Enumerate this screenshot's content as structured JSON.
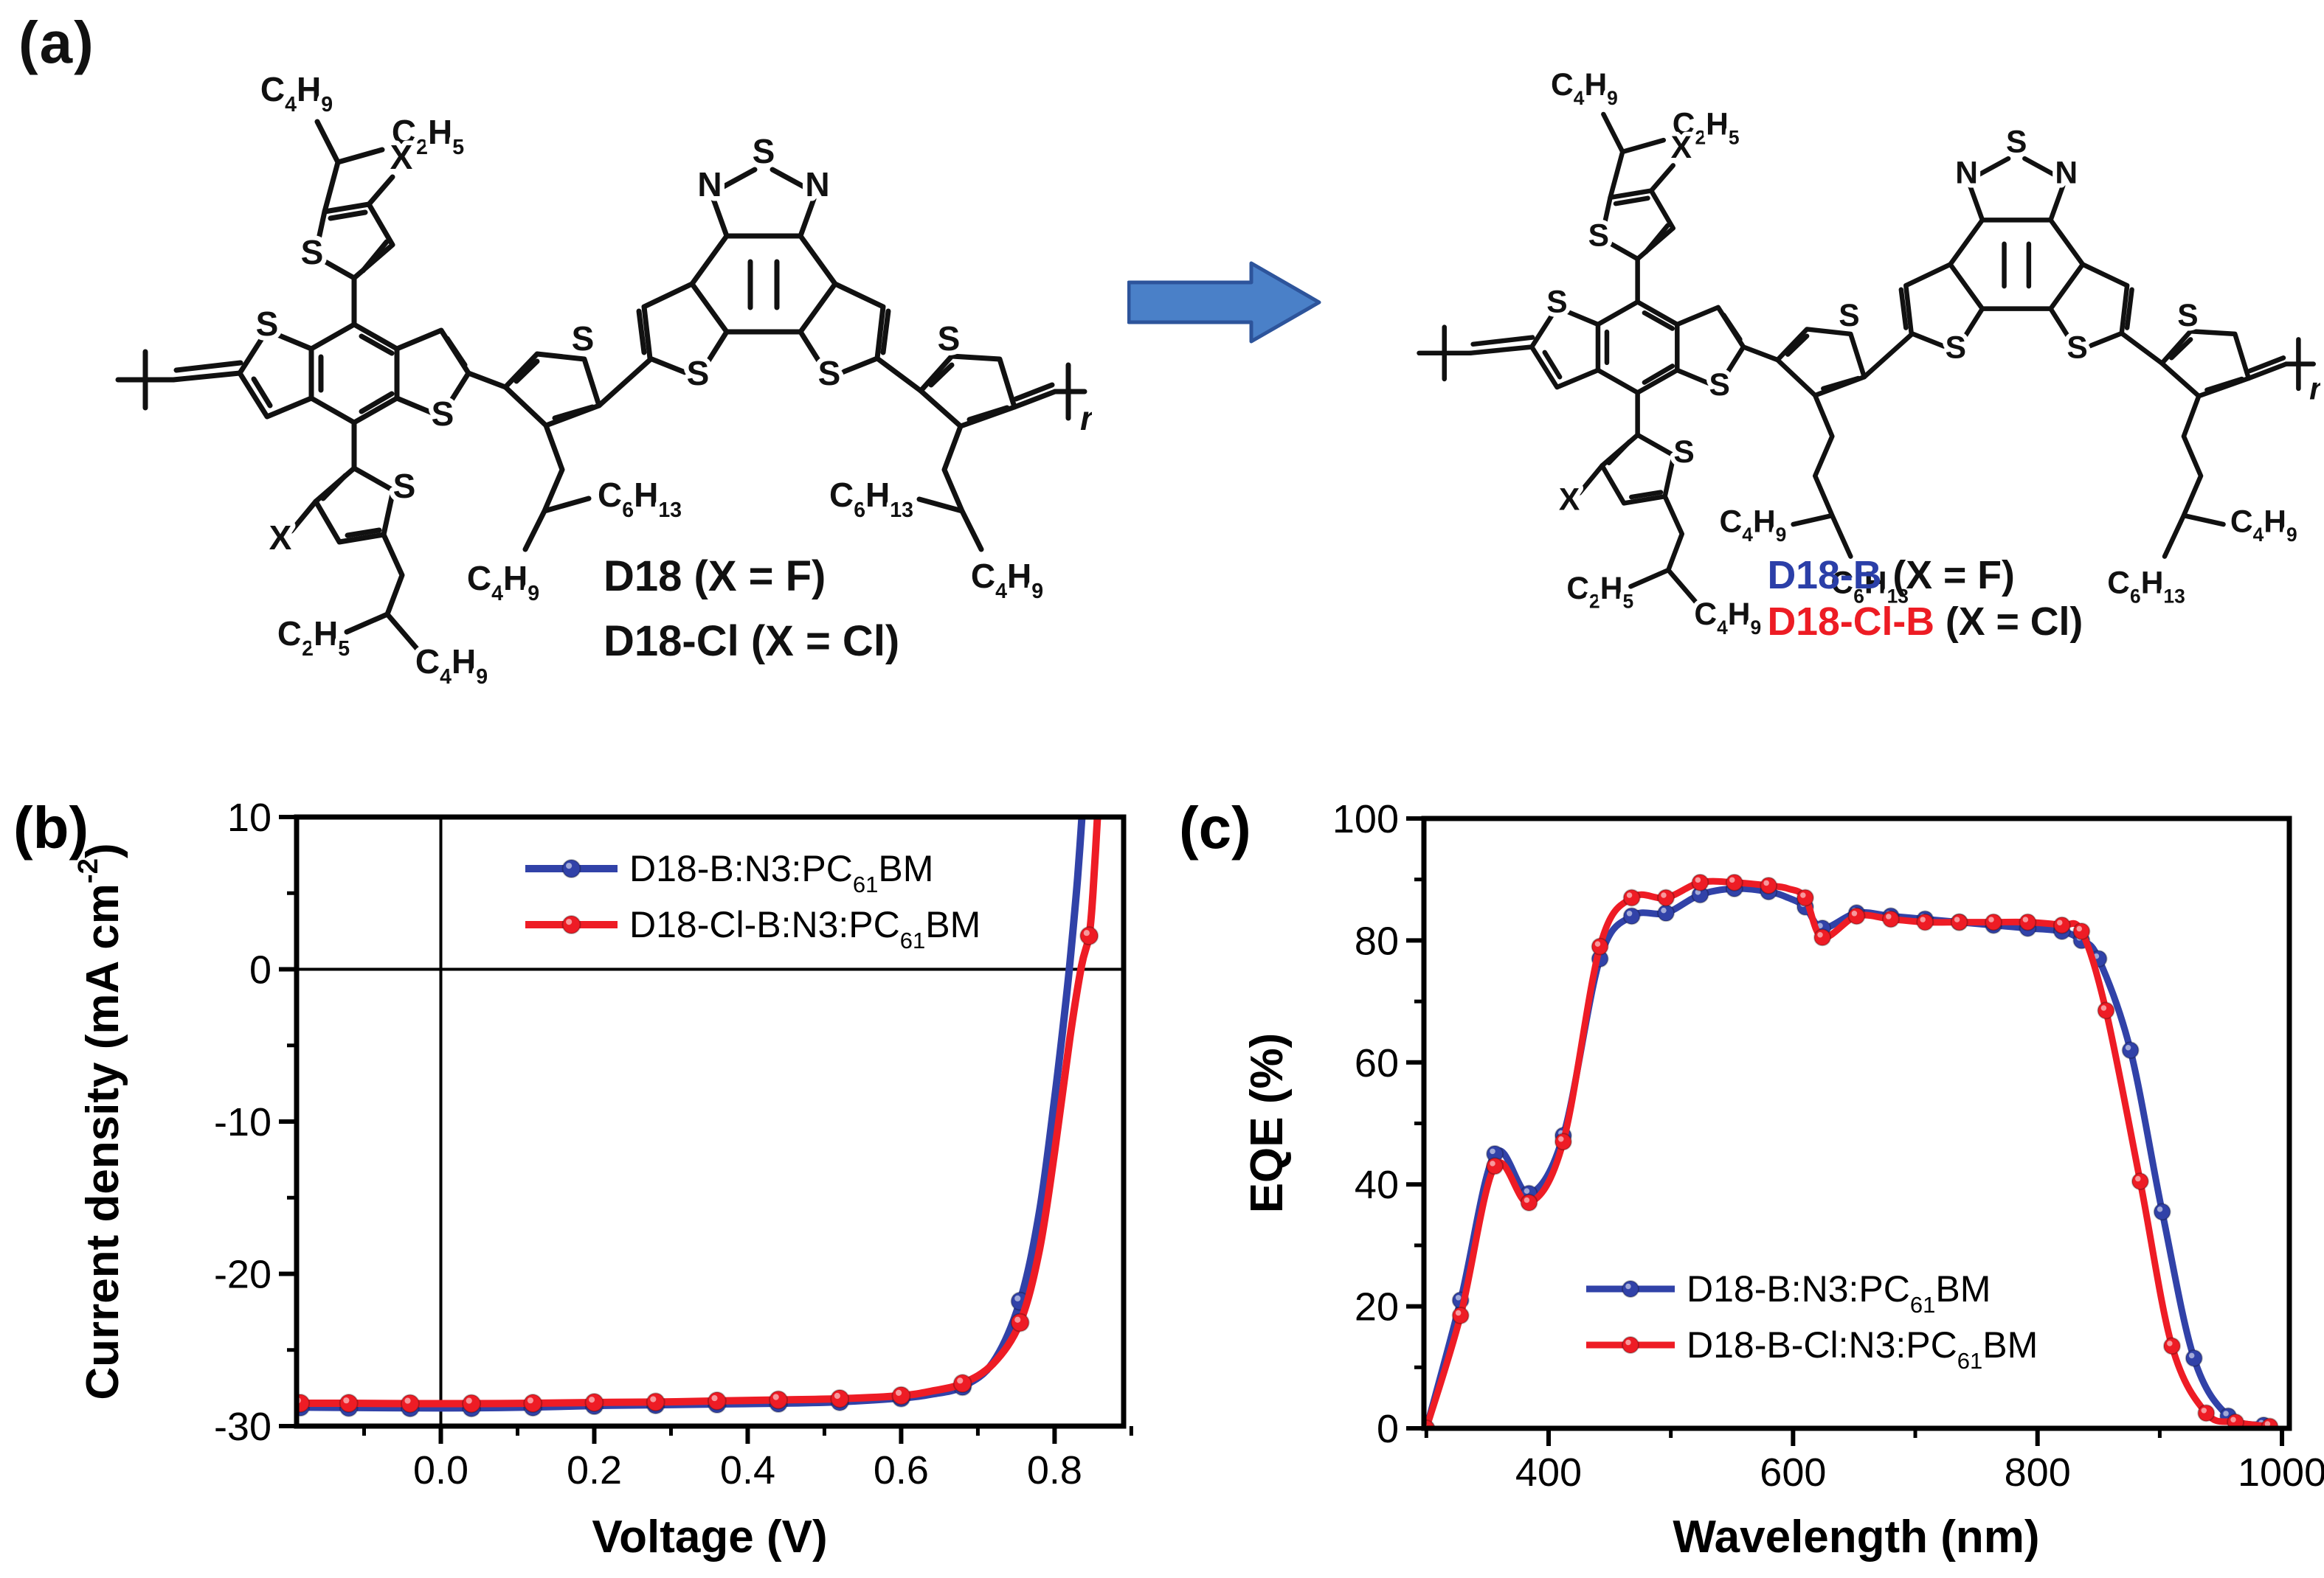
{
  "panel_a": {
    "label": "(a)",
    "arrow": {
      "fill": "#4a80c8",
      "stroke": "#2d549b"
    },
    "formulas": {
      "c4h9": "C_{4}H_{9}",
      "c2h5": "C_{2}H_{5}",
      "c6h13": "C_{6}H_{13}",
      "s": "S",
      "n": "N",
      "x": "X",
      "repeat": "n"
    },
    "left": {
      "captions": [
        {
          "name": "D18",
          "color": "#111111",
          "cond": " (X = F)"
        },
        {
          "name": "D18-Cl",
          "color": "#111111",
          "cond": " (X = Cl)"
        }
      ]
    },
    "right": {
      "captions": [
        {
          "name": "D18-B",
          "color": "#2b3fa8",
          "cond": " (X = F)"
        },
        {
          "name": "D18-Cl-B",
          "color": "#ed1c24",
          "cond": " (X = Cl)"
        }
      ]
    }
  },
  "chart_data": [
    {
      "panel_label": "(b)",
      "type": "line",
      "title": "",
      "xlabel": "Voltage (V)",
      "ylabel": "Current density (mA cm^{-2})",
      "xlim": [
        -0.188,
        0.89
      ],
      "ylim": [
        -30,
        10
      ],
      "x_major_ticks": [
        0.0,
        0.2,
        0.4,
        0.6,
        0.8
      ],
      "x_tick_labels": [
        "0.0",
        "0.2",
        "0.4",
        "0.6",
        "0.8"
      ],
      "x_minor_ticks": [
        -0.1,
        0.1,
        0.3,
        0.5,
        0.7,
        0.9
      ],
      "y_major_ticks": [
        10,
        0,
        -10,
        -20,
        -30
      ],
      "y_tick_labels": [
        "10",
        "0",
        "-10",
        "-20",
        "-30"
      ],
      "y_minor_ticks": [
        5,
        -5,
        -15,
        -25
      ],
      "grid": false,
      "zero_lines": true,
      "legend_position": "top-inside",
      "series": [
        {
          "name": "D18-B:N3:PC_{61}BM",
          "color": "#3142a8",
          "line": [
            [
              -0.188,
              -28.75
            ],
            [
              -0.12,
              -28.78
            ],
            [
              -0.04,
              -28.8
            ],
            [
              0.04,
              -28.8
            ],
            [
              0.12,
              -28.75
            ],
            [
              0.2,
              -28.65
            ],
            [
              0.28,
              -28.6
            ],
            [
              0.36,
              -28.55
            ],
            [
              0.44,
              -28.5
            ],
            [
              0.52,
              -28.4
            ],
            [
              0.6,
              -28.15
            ],
            [
              0.64,
              -27.9
            ],
            [
              0.68,
              -27.4
            ],
            [
              0.72,
              -25.8
            ],
            [
              0.755,
              -21.8
            ],
            [
              0.78,
              -16.0
            ],
            [
              0.8,
              -8.5
            ],
            [
              0.815,
              -2.0
            ],
            [
              0.822,
              1.5
            ],
            [
              0.83,
              6.0
            ],
            [
              0.837,
              11.0
            ]
          ],
          "markers": [
            [
              -0.183,
              -28.75
            ],
            [
              -0.12,
              -28.78
            ],
            [
              -0.04,
              -28.8
            ],
            [
              0.04,
              -28.8
            ],
            [
              0.12,
              -28.75
            ],
            [
              0.2,
              -28.65
            ],
            [
              0.28,
              -28.6
            ],
            [
              0.36,
              -28.55
            ],
            [
              0.44,
              -28.5
            ],
            [
              0.52,
              -28.4
            ],
            [
              0.6,
              -28.15
            ],
            [
              0.68,
              -27.4
            ],
            [
              0.755,
              -21.8
            ]
          ]
        },
        {
          "name": "D18-Cl-B:N3:PC_{61}BM",
          "color": "#ee1c25",
          "line": [
            [
              -0.188,
              -28.5
            ],
            [
              -0.12,
              -28.5
            ],
            [
              -0.04,
              -28.52
            ],
            [
              0.04,
              -28.52
            ],
            [
              0.12,
              -28.5
            ],
            [
              0.2,
              -28.45
            ],
            [
              0.28,
              -28.42
            ],
            [
              0.36,
              -28.35
            ],
            [
              0.44,
              -28.28
            ],
            [
              0.52,
              -28.2
            ],
            [
              0.6,
              -28.0
            ],
            [
              0.64,
              -27.7
            ],
            [
              0.68,
              -27.2
            ],
            [
              0.72,
              -25.9
            ],
            [
              0.755,
              -23.2
            ],
            [
              0.78,
              -18.5
            ],
            [
              0.8,
              -12.0
            ],
            [
              0.82,
              -4.5
            ],
            [
              0.835,
              0.2
            ],
            [
              0.845,
              2.2
            ],
            [
              0.85,
              5.0
            ],
            [
              0.857,
              11.0
            ]
          ],
          "markers": [
            [
              -0.183,
              -28.5
            ],
            [
              -0.12,
              -28.5
            ],
            [
              -0.04,
              -28.52
            ],
            [
              0.04,
              -28.52
            ],
            [
              0.12,
              -28.5
            ],
            [
              0.2,
              -28.45
            ],
            [
              0.28,
              -28.42
            ],
            [
              0.36,
              -28.35
            ],
            [
              0.44,
              -28.28
            ],
            [
              0.52,
              -28.2
            ],
            [
              0.6,
              -28.0
            ],
            [
              0.68,
              -27.2
            ],
            [
              0.755,
              -23.2
            ],
            [
              0.845,
              2.2
            ]
          ]
        }
      ]
    },
    {
      "panel_label": "(c)",
      "type": "line",
      "title": "",
      "xlabel": "Wavelength (nm)",
      "ylabel": "EQE (%)",
      "xlim": [
        298,
        1006
      ],
      "ylim": [
        0,
        100
      ],
      "x_major_ticks": [
        400,
        600,
        800,
        1000
      ],
      "x_tick_labels": [
        "400",
        "600",
        "800",
        "1000"
      ],
      "x_minor_ticks": [
        300,
        500,
        700,
        900
      ],
      "y_major_ticks": [
        0,
        20,
        40,
        60,
        80,
        100
      ],
      "y_tick_labels": [
        "0",
        "20",
        "40",
        "60",
        "80",
        "100"
      ],
      "y_minor_ticks": [
        10,
        30,
        50,
        70,
        90
      ],
      "grid": false,
      "zero_lines": false,
      "legend_position": "bottom-inside",
      "series": [
        {
          "name": "D18-B:N3:PC_{61}BM",
          "color": "#3142a8",
          "line": [
            [
              300,
              0
            ],
            [
              328,
              21
            ],
            [
              356,
              45
            ],
            [
              384,
              38.5
            ],
            [
              412,
              48
            ],
            [
              442,
              77
            ],
            [
              468,
              84
            ],
            [
              496,
              84.5
            ],
            [
              524,
              87.5
            ],
            [
              552,
              88.5
            ],
            [
              580,
              88
            ],
            [
              596,
              87
            ],
            [
              610,
              85.5
            ],
            [
              624,
              82
            ],
            [
              652,
              84.5
            ],
            [
              680,
              84
            ],
            [
              708,
              83.5
            ],
            [
              736,
              83
            ],
            [
              764,
              82.5
            ],
            [
              792,
              82
            ],
            [
              820,
              81.5
            ],
            [
              836,
              80
            ],
            [
              850,
              77
            ],
            [
              876,
              62
            ],
            [
              902,
              35.5
            ],
            [
              928,
              11.5
            ],
            [
              956,
              2
            ],
            [
              985,
              0.5
            ]
          ],
          "markers": [
            [
              300,
              0
            ],
            [
              328,
              21
            ],
            [
              356,
              45
            ],
            [
              384,
              38.5
            ],
            [
              412,
              48
            ],
            [
              442,
              77
            ],
            [
              468,
              84
            ],
            [
              496,
              84.5
            ],
            [
              524,
              87.5
            ],
            [
              552,
              88.5
            ],
            [
              580,
              88
            ],
            [
              610,
              85.5
            ],
            [
              624,
              82
            ],
            [
              652,
              84.5
            ],
            [
              680,
              84
            ],
            [
              708,
              83.5
            ],
            [
              736,
              83
            ],
            [
              764,
              82.5
            ],
            [
              792,
              82
            ],
            [
              820,
              81.5
            ],
            [
              836,
              80
            ],
            [
              850,
              77
            ],
            [
              876,
              62
            ],
            [
              902,
              35.5
            ],
            [
              928,
              11.5
            ],
            [
              956,
              2
            ],
            [
              985,
              0.5
            ]
          ]
        },
        {
          "name": "D18-B-Cl:N3:PC_{61}BM",
          "color": "#ee1c25",
          "line": [
            [
              300,
              0
            ],
            [
              328,
              18.5
            ],
            [
              356,
              43
            ],
            [
              384,
              37
            ],
            [
              412,
              47
            ],
            [
              442,
              79
            ],
            [
              468,
              87
            ],
            [
              496,
              87
            ],
            [
              524,
              89.5
            ],
            [
              552,
              89.5
            ],
            [
              580,
              89
            ],
            [
              596,
              88.5
            ],
            [
              610,
              87
            ],
            [
              624,
              80.5
            ],
            [
              652,
              84
            ],
            [
              680,
              83.5
            ],
            [
              708,
              83
            ],
            [
              736,
              83
            ],
            [
              764,
              83
            ],
            [
              792,
              83
            ],
            [
              820,
              82.5
            ],
            [
              836,
              81.5
            ],
            [
              856,
              68.5
            ],
            [
              884,
              40.5
            ],
            [
              910,
              13.5
            ],
            [
              938,
              2.5
            ],
            [
              962,
              1
            ],
            [
              990,
              0.3
            ]
          ],
          "markers": [
            [
              300,
              0
            ],
            [
              328,
              18.5
            ],
            [
              356,
              43
            ],
            [
              384,
              37
            ],
            [
              412,
              47
            ],
            [
              442,
              79
            ],
            [
              468,
              87
            ],
            [
              496,
              87
            ],
            [
              524,
              89.5
            ],
            [
              552,
              89.5
            ],
            [
              580,
              89
            ],
            [
              610,
              87
            ],
            [
              624,
              80.5
            ],
            [
              652,
              84
            ],
            [
              680,
              83.5
            ],
            [
              708,
              83
            ],
            [
              736,
              83
            ],
            [
              764,
              83
            ],
            [
              792,
              83
            ],
            [
              820,
              82.5
            ],
            [
              836,
              81.5
            ],
            [
              856,
              68.5
            ],
            [
              884,
              40.5
            ],
            [
              910,
              13.5
            ],
            [
              938,
              2.5
            ],
            [
              962,
              1
            ],
            [
              990,
              0.3
            ]
          ]
        }
      ]
    }
  ]
}
